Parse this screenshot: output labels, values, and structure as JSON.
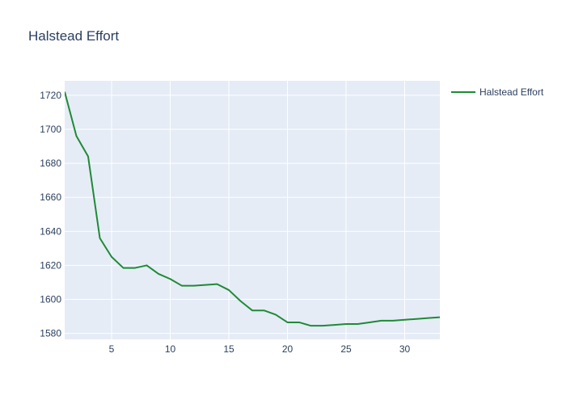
{
  "chart_data": {
    "type": "line",
    "title": "Halstead Effort",
    "xlabel": "",
    "ylabel": "",
    "xlim": [
      1,
      33
    ],
    "ylim": [
      1576.5,
      1728.5
    ],
    "xticks": [
      5,
      10,
      15,
      20,
      25,
      30
    ],
    "yticks": [
      1580,
      1600,
      1620,
      1640,
      1660,
      1680,
      1700,
      1720
    ],
    "grid": true,
    "legend": "top-right",
    "colors": {
      "plot_bg": "#e5ecf6",
      "grid": "#ffffff",
      "line": "#1f8a35",
      "text": "#2a3f5f"
    },
    "series": [
      {
        "name": "Halstead Effort",
        "x": [
          1,
          2,
          3,
          4,
          5,
          6,
          7,
          8,
          9,
          10,
          11,
          12,
          13,
          14,
          15,
          16,
          17,
          18,
          19,
          20,
          21,
          22,
          23,
          24,
          25,
          26,
          27,
          28,
          29,
          30,
          31,
          32,
          33
        ],
        "y": [
          1722,
          1696,
          1684,
          1636,
          1625,
          1618.5,
          1618.5,
          1620,
          1615,
          1612,
          1608,
          1608,
          1608.5,
          1609,
          1605.5,
          1599,
          1593.5,
          1593.5,
          1591,
          1586.5,
          1586.5,
          1584.5,
          1584.5,
          1585,
          1585.5,
          1585.5,
          1586.5,
          1587.5,
          1587.5,
          1588,
          1588.5,
          1589,
          1589.5
        ]
      }
    ]
  }
}
